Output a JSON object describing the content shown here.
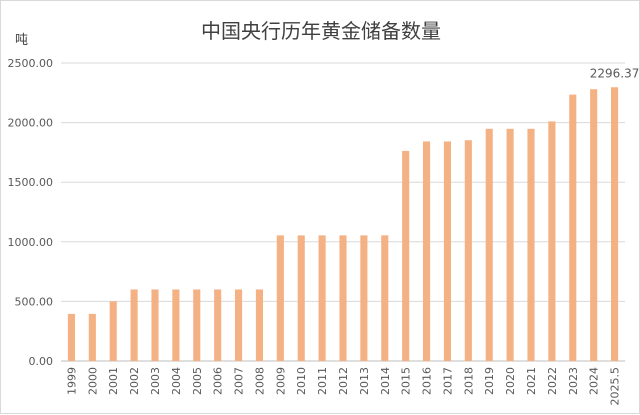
{
  "chart_data": {
    "type": "bar",
    "title": "中国央行历年黄金储备数量",
    "y_unit": "吨",
    "xlabel": "",
    "ylabel": "",
    "categories": [
      "1999",
      "2000",
      "2001",
      "2002",
      "2003",
      "2004",
      "2005",
      "2006",
      "2007",
      "2008",
      "2009",
      "2010",
      "2011",
      "2012",
      "2013",
      "2014",
      "2015",
      "2016",
      "2017",
      "2018",
      "2019",
      "2020",
      "2021",
      "2022",
      "2023",
      "2024",
      "2025.5"
    ],
    "values": [
      395,
      395,
      500,
      600,
      600,
      600,
      600,
      600,
      600,
      600,
      1054,
      1054,
      1054,
      1054,
      1054,
      1054,
      1762,
      1842,
      1842,
      1852,
      1948,
      1948,
      1948,
      2010,
      2235,
      2280,
      2296.37
    ],
    "ylim": [
      0,
      2500
    ],
    "yticks": [
      "0.00",
      "500.00",
      "1000.00",
      "1500.00",
      "2000.00",
      "2500.00"
    ],
    "ytick_values": [
      0,
      500,
      1000,
      1500,
      2000,
      2500
    ],
    "grid": true,
    "bar_color": "#f4b183",
    "data_labels": [
      {
        "index": 26,
        "text": "2296.37"
      }
    ]
  }
}
